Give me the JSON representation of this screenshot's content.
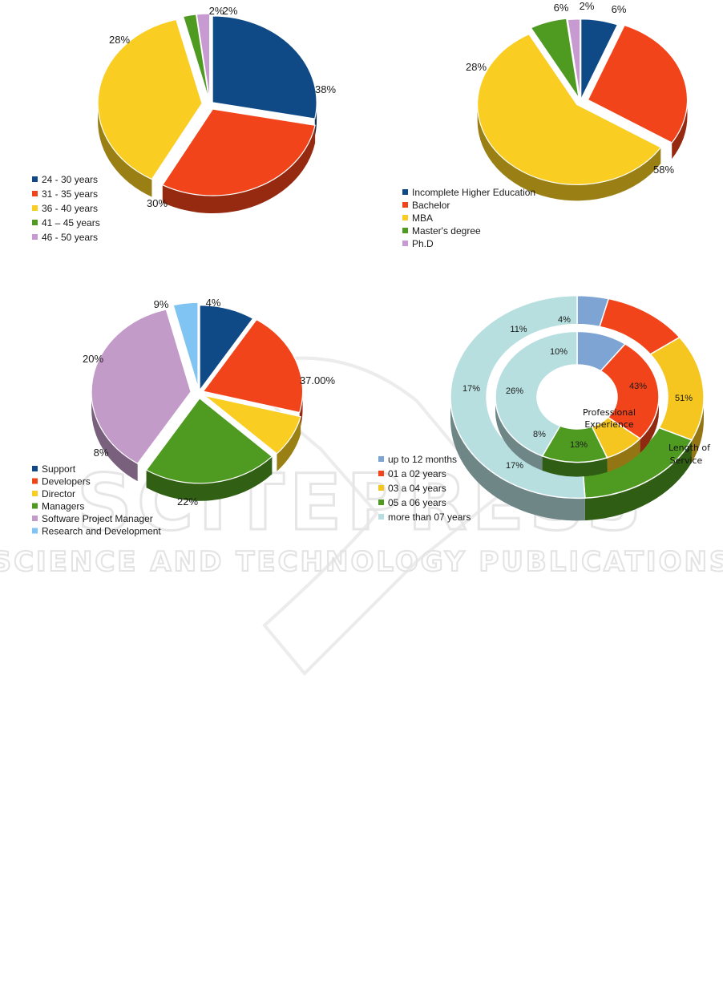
{
  "watermark": {
    "line1": "SCITEPRESS",
    "line2": "SCIENCE AND TECHNOLOGY PUBLICATIONS"
  },
  "chart_data": [
    {
      "type": "pie",
      "id": "age",
      "categories": [
        "24 - 30 years",
        "31 - 35 years",
        "36 - 40 years",
        "41 – 45 years",
        "46 - 50 years"
      ],
      "values": [
        28,
        30,
        38,
        2,
        2
      ],
      "labels": [
        "28%",
        "30%",
        "38%",
        "2%",
        "2%"
      ],
      "colors": [
        "#0f4a87",
        "#f2441b",
        "#f9cd21",
        "#4f9b22",
        "#c79bd1"
      ],
      "legend": "bottom-left"
    },
    {
      "type": "pie",
      "id": "education",
      "categories": [
        "Incomplete Higher Education",
        "Bachelor",
        "MBA",
        "Master's degree",
        "Ph.D"
      ],
      "values": [
        6,
        28,
        58,
        6,
        2
      ],
      "labels": [
        "6%",
        "28%",
        "58%",
        "6%",
        "2%"
      ],
      "colors": [
        "#0f4a87",
        "#f2441b",
        "#f9cd21",
        "#4f9b22",
        "#c79bd1"
      ],
      "legend": "bottom-left"
    },
    {
      "type": "pie",
      "id": "role",
      "categories": [
        "Support",
        "Developers",
        "Director",
        "Managers",
        "Software Project Manager",
        "Research and Development"
      ],
      "values": [
        9,
        20,
        8,
        22,
        37,
        4
      ],
      "labels": [
        "9%",
        "20%",
        "8%",
        "22%",
        "37.00%",
        "4%"
      ],
      "colors": [
        "#0f4a87",
        "#f2441b",
        "#f9cd21",
        "#4f9b22",
        "#c39bc9",
        "#7fc4f2"
      ],
      "legend": "bottom-left"
    },
    {
      "type": "pie",
      "subtype": "nested-donut",
      "id": "experience",
      "categories": [
        "up to 12 months",
        "01 a 02 years",
        "03 a 04 years",
        "05 a 06 years",
        "more than 07 years"
      ],
      "series": [
        {
          "name": "Professional Experience",
          "values": [
            10,
            26,
            8,
            13,
            43
          ],
          "labels": [
            "10%",
            "26%",
            "8%",
            "13%",
            "43%"
          ]
        },
        {
          "name": "Length of Service",
          "values": [
            4,
            11,
            17,
            17,
            51
          ],
          "labels": [
            "4%",
            "11%",
            "17%",
            "17%",
            "51%"
          ]
        }
      ],
      "ring_titles": {
        "inner_line1": "Professional",
        "inner_line2": "Experience",
        "outer_line1": "Length of",
        "outer_line2": "Service"
      },
      "colors": [
        "#7ea4d4",
        "#f2441b",
        "#f5c520",
        "#4f9b22",
        "#b8dfe0"
      ],
      "legend": "bottom-left"
    }
  ]
}
